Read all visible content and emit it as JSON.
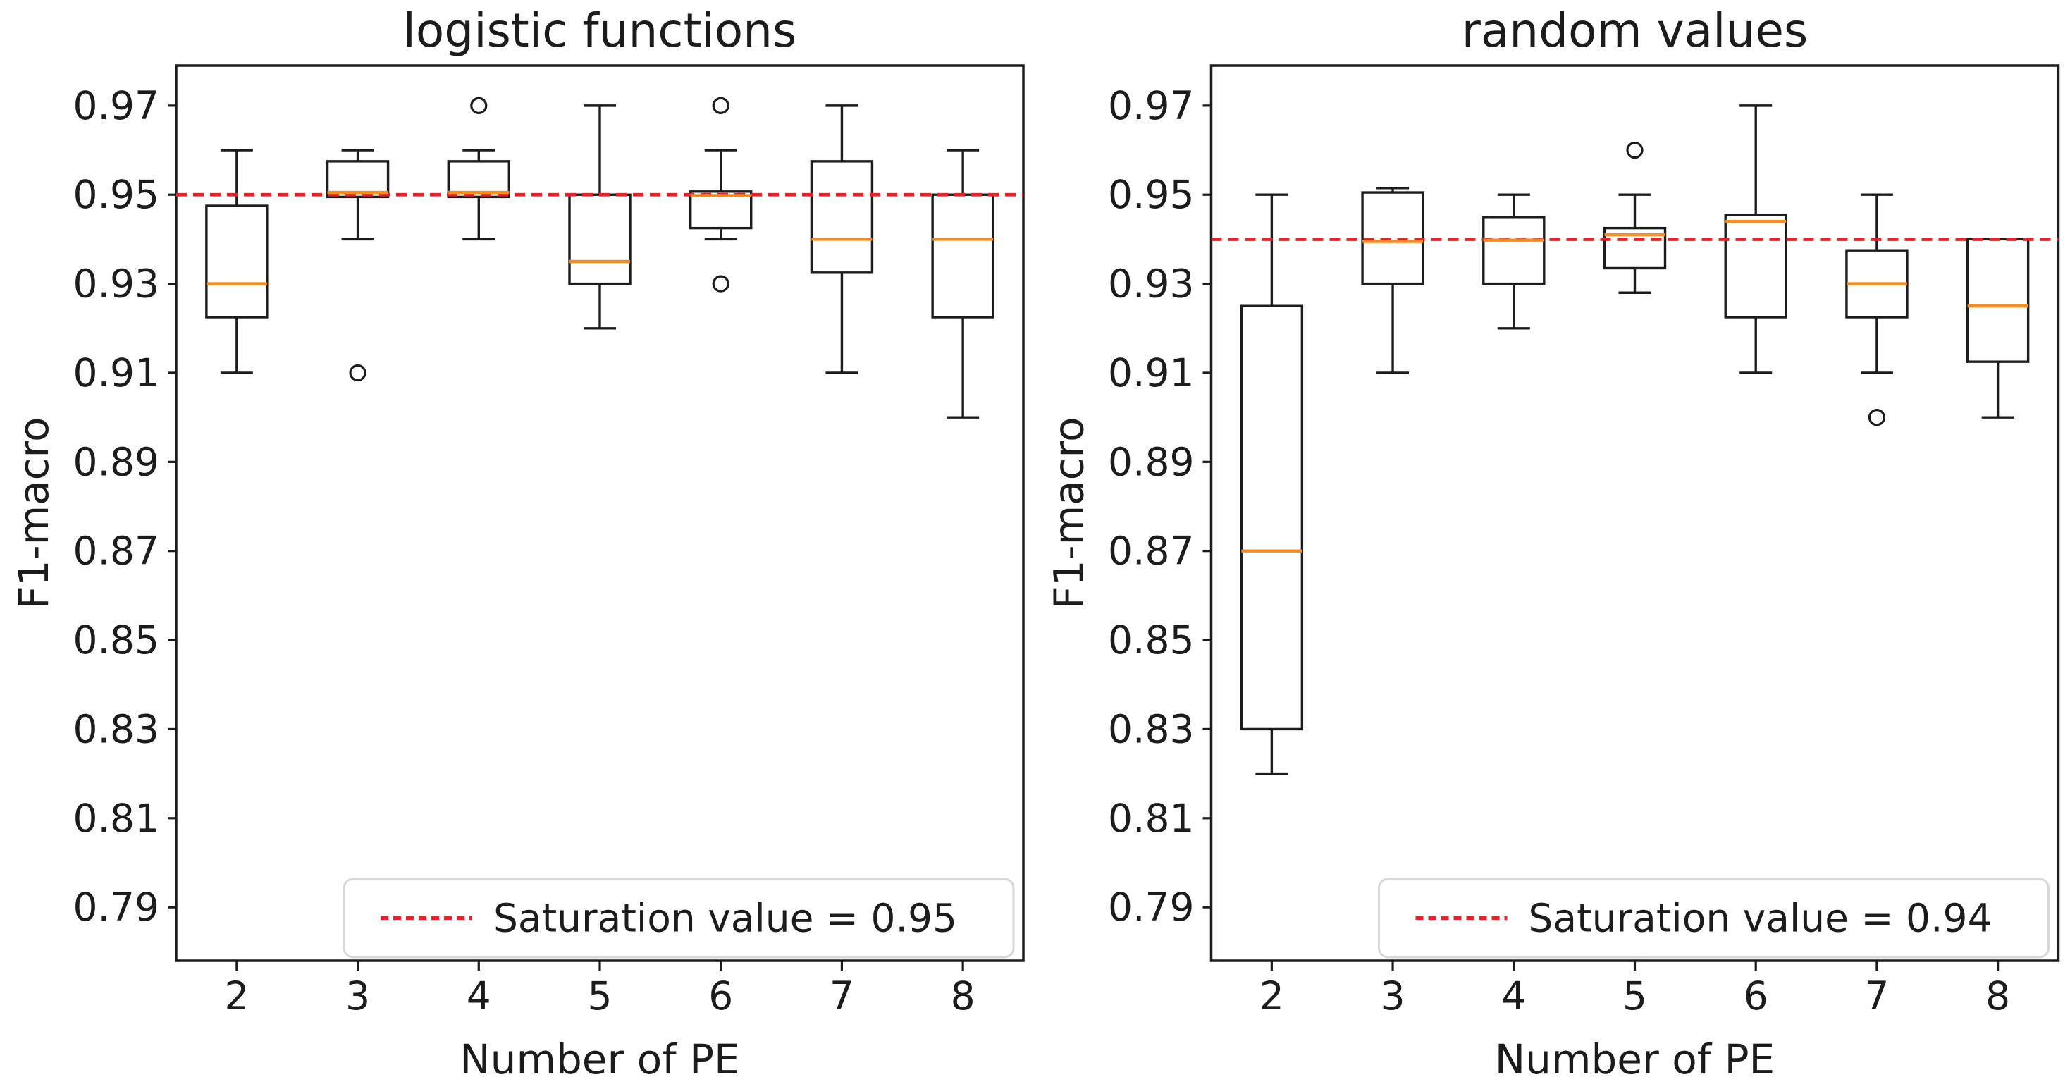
{
  "figure": {
    "background": "#ffffff",
    "colors": {
      "box_line": "#1c1c1c",
      "median_line": "#f68c1f",
      "saturation_line": "#ec2027",
      "text": "#1c1c1c",
      "legend_border": "#d8d8d8"
    }
  },
  "chart_data": [
    {
      "type": "boxplot",
      "title": "logistic functions",
      "xlabel": "Number of PE",
      "ylabel": "F1-macro",
      "categories": [
        2,
        3,
        4,
        5,
        6,
        7,
        8
      ],
      "xlim": [
        1.5,
        8.5
      ],
      "ylim": [
        0.778,
        0.979
      ],
      "yticks": [
        0.79,
        0.81,
        0.83,
        0.85,
        0.87,
        0.89,
        0.91,
        0.93,
        0.95,
        0.97
      ],
      "grid": false,
      "legend": {
        "label": "Saturation value = 0.95",
        "position": "lower right"
      },
      "saturation": {
        "value": 0.95
      },
      "boxes": [
        {
          "category": 2,
          "whisker_low": 0.91,
          "q1": 0.9225,
          "median": 0.93,
          "q3": 0.9475,
          "whisker_high": 0.96,
          "outliers": []
        },
        {
          "category": 3,
          "whisker_low": 0.94,
          "q1": 0.9495,
          "median": 0.9505,
          "q3": 0.9575,
          "whisker_high": 0.96,
          "outliers": [
            0.91
          ]
        },
        {
          "category": 4,
          "whisker_low": 0.94,
          "q1": 0.9495,
          "median": 0.9505,
          "q3": 0.9575,
          "whisker_high": 0.96,
          "outliers": [
            0.97
          ]
        },
        {
          "category": 5,
          "whisker_low": 0.92,
          "q1": 0.93,
          "median": 0.935,
          "q3": 0.95,
          "whisker_high": 0.97,
          "outliers": []
        },
        {
          "category": 6,
          "whisker_low": 0.94,
          "q1": 0.9425,
          "median": 0.9498,
          "q3": 0.9507,
          "whisker_high": 0.96,
          "outliers": [
            0.97,
            0.93
          ]
        },
        {
          "category": 7,
          "whisker_low": 0.91,
          "q1": 0.9325,
          "median": 0.94,
          "q3": 0.9575,
          "whisker_high": 0.97,
          "outliers": []
        },
        {
          "category": 8,
          "whisker_low": 0.9,
          "q1": 0.9225,
          "median": 0.94,
          "q3": 0.95,
          "whisker_high": 0.96,
          "outliers": []
        }
      ]
    },
    {
      "type": "boxplot",
      "title": "random values",
      "xlabel": "Number of PE",
      "ylabel": "F1-macro",
      "categories": [
        2,
        3,
        4,
        5,
        6,
        7,
        8
      ],
      "xlim": [
        1.5,
        8.5
      ],
      "ylim": [
        0.778,
        0.979
      ],
      "yticks": [
        0.79,
        0.81,
        0.83,
        0.85,
        0.87,
        0.89,
        0.91,
        0.93,
        0.95,
        0.97
      ],
      "grid": false,
      "legend": {
        "label": "Saturation value = 0.94",
        "position": "lower right"
      },
      "saturation": {
        "value": 0.94
      },
      "boxes": [
        {
          "category": 2,
          "whisker_low": 0.82,
          "q1": 0.83,
          "median": 0.87,
          "q3": 0.925,
          "whisker_high": 0.95,
          "outliers": []
        },
        {
          "category": 3,
          "whisker_low": 0.91,
          "q1": 0.93,
          "median": 0.9395,
          "q3": 0.9505,
          "whisker_high": 0.9515,
          "outliers": []
        },
        {
          "category": 4,
          "whisker_low": 0.92,
          "q1": 0.93,
          "median": 0.9398,
          "q3": 0.945,
          "whisker_high": 0.95,
          "outliers": []
        },
        {
          "category": 5,
          "whisker_low": 0.928,
          "q1": 0.9335,
          "median": 0.941,
          "q3": 0.9425,
          "whisker_high": 0.95,
          "outliers": [
            0.96
          ]
        },
        {
          "category": 6,
          "whisker_low": 0.91,
          "q1": 0.9225,
          "median": 0.944,
          "q3": 0.9455,
          "whisker_high": 0.97,
          "outliers": []
        },
        {
          "category": 7,
          "whisker_low": 0.91,
          "q1": 0.9225,
          "median": 0.93,
          "q3": 0.9375,
          "whisker_high": 0.95,
          "outliers": [
            0.9
          ]
        },
        {
          "category": 8,
          "whisker_low": 0.9,
          "q1": 0.9125,
          "median": 0.925,
          "q3": 0.94,
          "whisker_high": 0.94,
          "outliers": []
        }
      ]
    }
  ]
}
